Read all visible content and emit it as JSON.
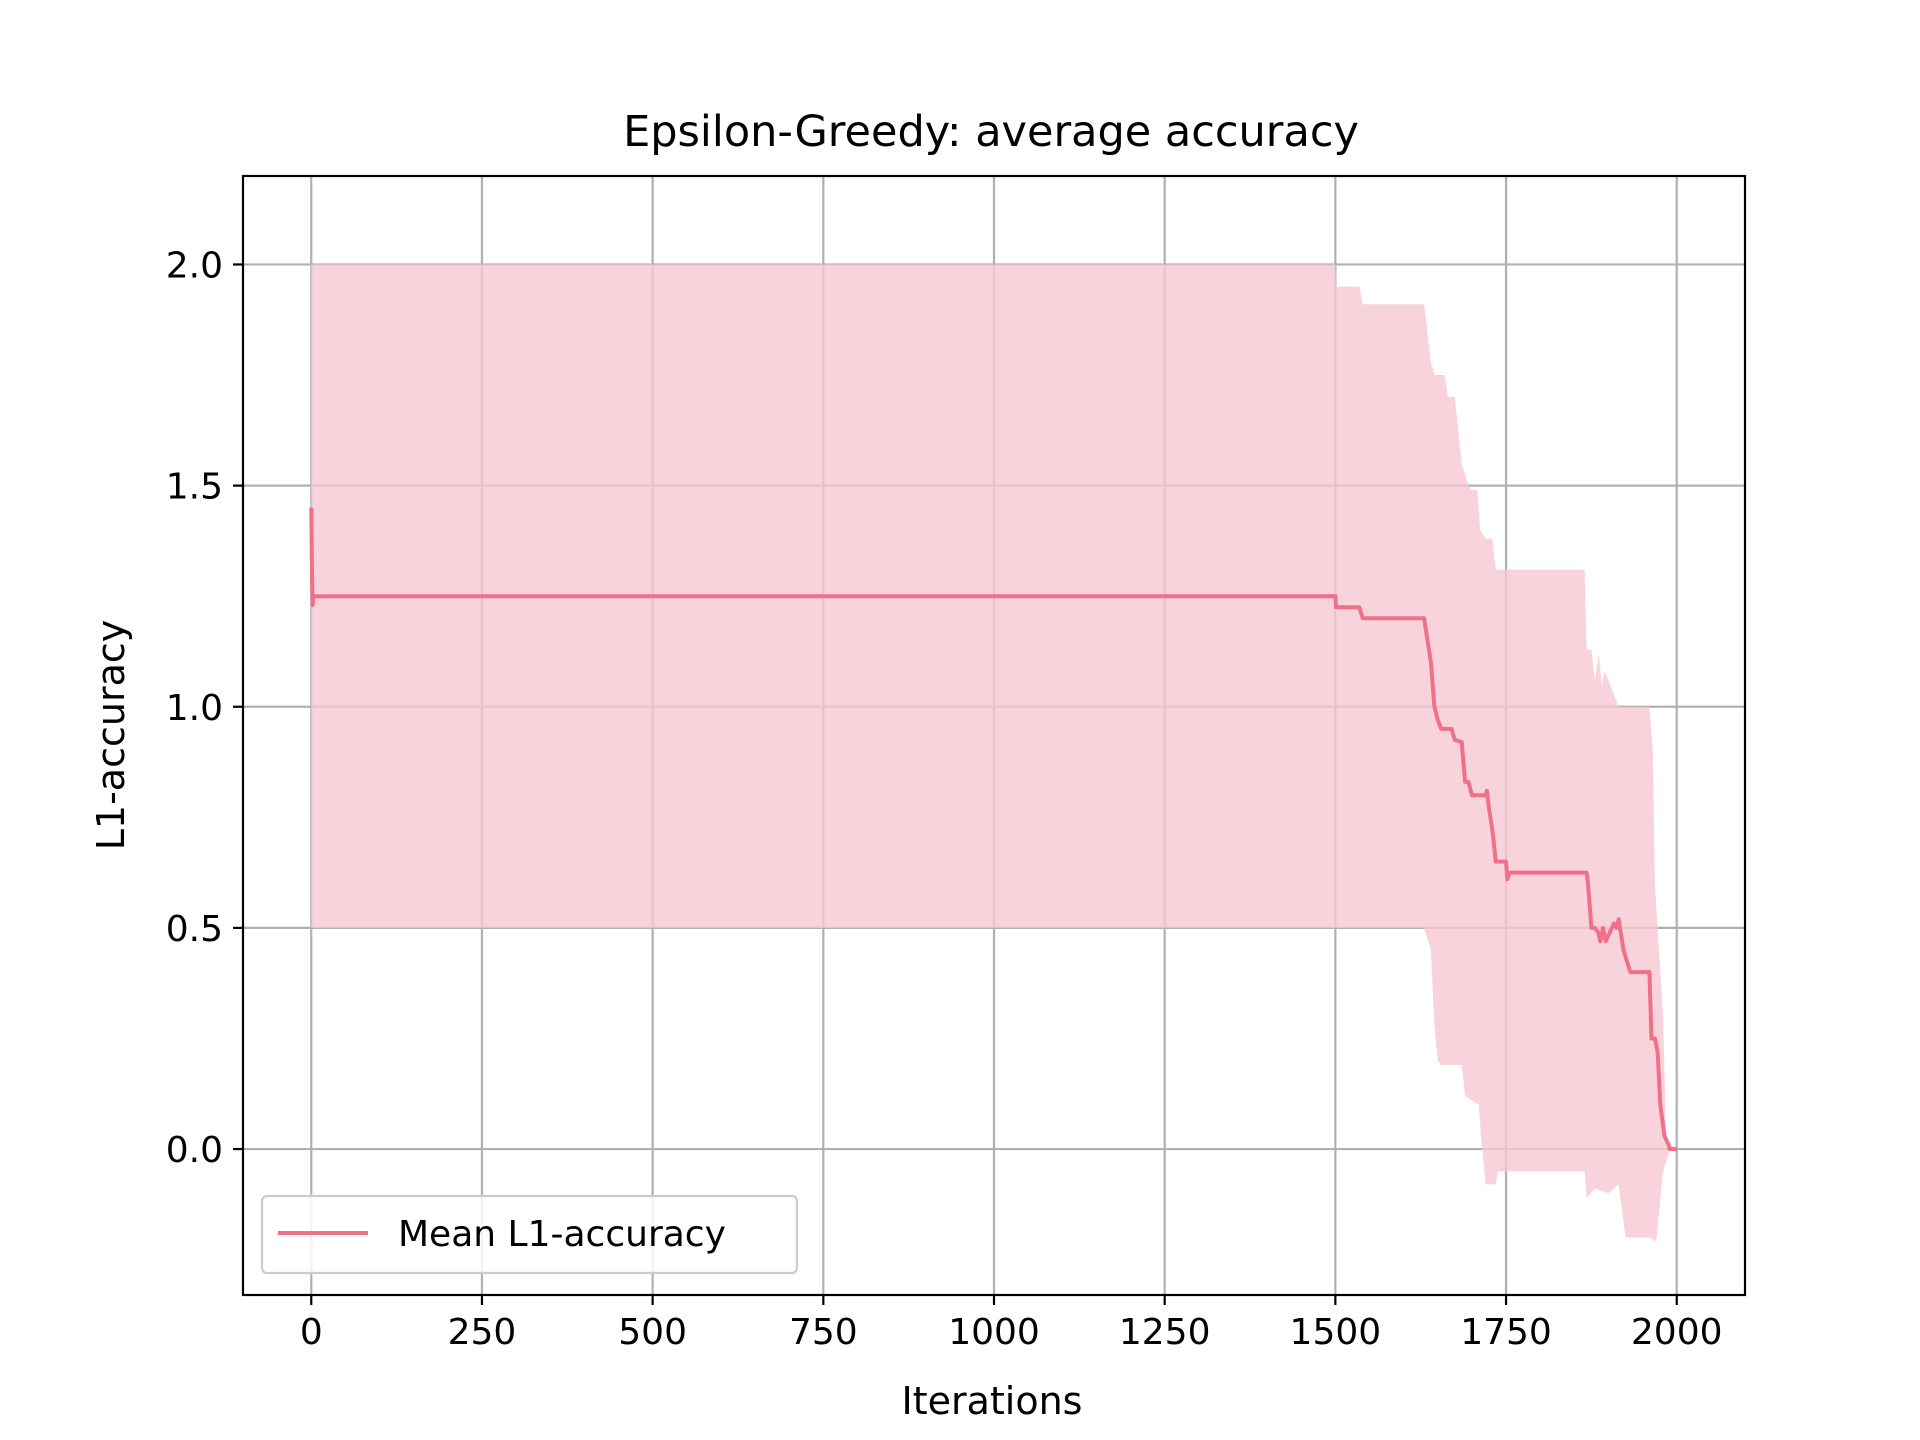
{
  "chart_data": {
    "type": "line",
    "title": "Epsilon-Greedy: average accuracy",
    "xlabel": "Iterations",
    "ylabel": "L1-accuracy",
    "xlim": [
      -100,
      2100
    ],
    "ylim": [
      -0.33,
      2.2
    ],
    "xticks": [
      0,
      250,
      500,
      750,
      1000,
      1250,
      1500,
      1750,
      2000
    ],
    "xtick_labels": [
      "0",
      "250",
      "500",
      "750",
      "1000",
      "1250",
      "1500",
      "1750",
      "2000"
    ],
    "yticks": [
      0.0,
      0.5,
      1.0,
      1.5,
      2.0
    ],
    "ytick_labels": [
      "0.0",
      "0.5",
      "1.0",
      "1.5",
      "2.0"
    ],
    "grid": true,
    "legend_placement": "lower-left",
    "series": [
      {
        "name": "Mean L1-accuracy",
        "color": "#f07088",
        "points": [
          [
            0,
            1.45
          ],
          [
            1,
            1.3
          ],
          [
            2,
            1.23
          ],
          [
            3,
            1.25
          ],
          [
            1500,
            1.25
          ],
          [
            1501,
            1.225
          ],
          [
            1535,
            1.225
          ],
          [
            1540,
            1.2
          ],
          [
            1630,
            1.2
          ],
          [
            1635,
            1.15
          ],
          [
            1640,
            1.1
          ],
          [
            1645,
            1.0
          ],
          [
            1650,
            0.97
          ],
          [
            1655,
            0.95
          ],
          [
            1670,
            0.95
          ],
          [
            1675,
            0.925
          ],
          [
            1685,
            0.92
          ],
          [
            1690,
            0.83
          ],
          [
            1695,
            0.83
          ],
          [
            1700,
            0.8
          ],
          [
            1720,
            0.8
          ],
          [
            1722,
            0.81
          ],
          [
            1725,
            0.77
          ],
          [
            1730,
            0.72
          ],
          [
            1735,
            0.65
          ],
          [
            1750,
            0.65
          ],
          [
            1752,
            0.61
          ],
          [
            1755,
            0.625
          ],
          [
            1868,
            0.625
          ],
          [
            1870,
            0.6
          ],
          [
            1875,
            0.5
          ],
          [
            1880,
            0.5
          ],
          [
            1885,
            0.49
          ],
          [
            1888,
            0.47
          ],
          [
            1892,
            0.5
          ],
          [
            1896,
            0.47
          ],
          [
            1902,
            0.49
          ],
          [
            1908,
            0.51
          ],
          [
            1912,
            0.5
          ],
          [
            1915,
            0.52
          ],
          [
            1918,
            0.49
          ],
          [
            1922,
            0.45
          ],
          [
            1928,
            0.42
          ],
          [
            1932,
            0.4
          ],
          [
            1960,
            0.4
          ],
          [
            1963,
            0.25
          ],
          [
            1968,
            0.25
          ],
          [
            1972,
            0.22
          ],
          [
            1976,
            0.1
          ],
          [
            1982,
            0.03
          ],
          [
            1988,
            0.01
          ],
          [
            1990,
            0.0
          ],
          [
            2000,
            0.0
          ]
        ]
      }
    ],
    "band": {
      "color": "#f8c8d2",
      "upper": [
        [
          0,
          2.0
        ],
        [
          1500,
          2.0
        ],
        [
          1501,
          1.95
        ],
        [
          1535,
          1.95
        ],
        [
          1540,
          1.91
        ],
        [
          1630,
          1.91
        ],
        [
          1640,
          1.78
        ],
        [
          1645,
          1.75
        ],
        [
          1660,
          1.75
        ],
        [
          1665,
          1.7
        ],
        [
          1675,
          1.7
        ],
        [
          1685,
          1.55
        ],
        [
          1695,
          1.5
        ],
        [
          1700,
          1.49
        ],
        [
          1708,
          1.49
        ],
        [
          1712,
          1.4
        ],
        [
          1720,
          1.38
        ],
        [
          1730,
          1.38
        ],
        [
          1735,
          1.31
        ],
        [
          1865,
          1.31
        ],
        [
          1868,
          1.13
        ],
        [
          1875,
          1.13
        ],
        [
          1880,
          1.06
        ],
        [
          1886,
          1.12
        ],
        [
          1890,
          1.05
        ],
        [
          1895,
          1.08
        ],
        [
          1905,
          1.04
        ],
        [
          1915,
          1.0
        ],
        [
          1960,
          1.0
        ],
        [
          1965,
          0.9
        ],
        [
          1968,
          0.6
        ],
        [
          1972,
          0.5
        ],
        [
          1980,
          0.3
        ],
        [
          1985,
          0.0
        ],
        [
          2000,
          0.0
        ]
      ],
      "lower": [
        [
          0,
          0.5
        ],
        [
          1630,
          0.5
        ],
        [
          1640,
          0.45
        ],
        [
          1645,
          0.28
        ],
        [
          1650,
          0.2
        ],
        [
          1655,
          0.19
        ],
        [
          1685,
          0.19
        ],
        [
          1690,
          0.12
        ],
        [
          1700,
          0.11
        ],
        [
          1710,
          0.1
        ],
        [
          1715,
          0.0
        ],
        [
          1720,
          -0.08
        ],
        [
          1735,
          -0.08
        ],
        [
          1738,
          -0.05
        ],
        [
          1865,
          -0.05
        ],
        [
          1868,
          -0.11
        ],
        [
          1880,
          -0.09
        ],
        [
          1900,
          -0.1
        ],
        [
          1915,
          -0.08
        ],
        [
          1925,
          -0.2
        ],
        [
          1960,
          -0.2
        ],
        [
          1970,
          -0.21
        ],
        [
          1980,
          -0.05
        ],
        [
          1990,
          0.0
        ],
        [
          2000,
          0.0
        ]
      ]
    }
  }
}
